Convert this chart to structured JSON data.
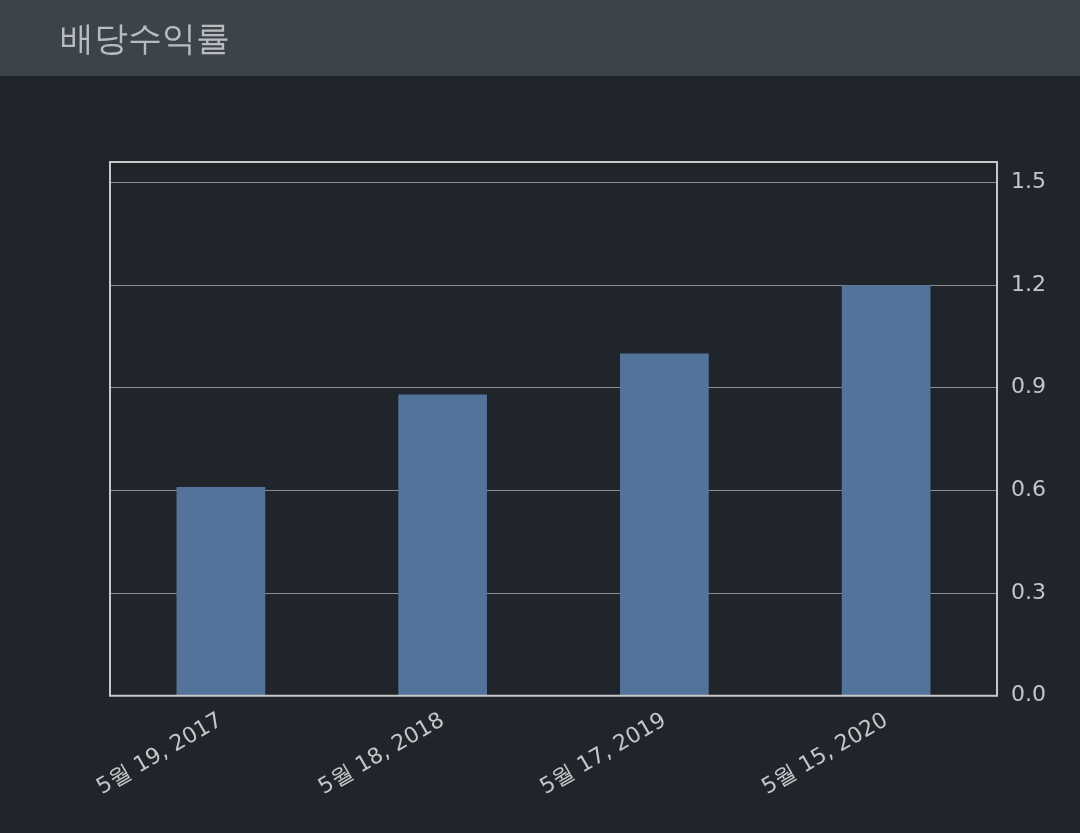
{
  "chart_data": {
    "type": "bar",
    "title": "배당수익률",
    "categories": [
      "5월 19, 2017",
      "5월 18, 2018",
      "5월 17, 2019",
      "5월 15, 2020"
    ],
    "values": [
      0.61,
      0.88,
      1.0,
      1.2
    ],
    "color": "#54739a",
    "ylim": [
      0,
      1.56
    ],
    "yticks": [
      {
        "value": 0,
        "label": "0.0"
      },
      {
        "value": 0.3,
        "label": "0.3"
      },
      {
        "value": 0.6,
        "label": "0.6"
      },
      {
        "value": 0.9,
        "label": "0.9"
      },
      {
        "value": 1.2,
        "label": "1.2"
      },
      {
        "value": 1.5,
        "label": "1.5"
      }
    ],
    "grid": "y",
    "legend": false
  }
}
